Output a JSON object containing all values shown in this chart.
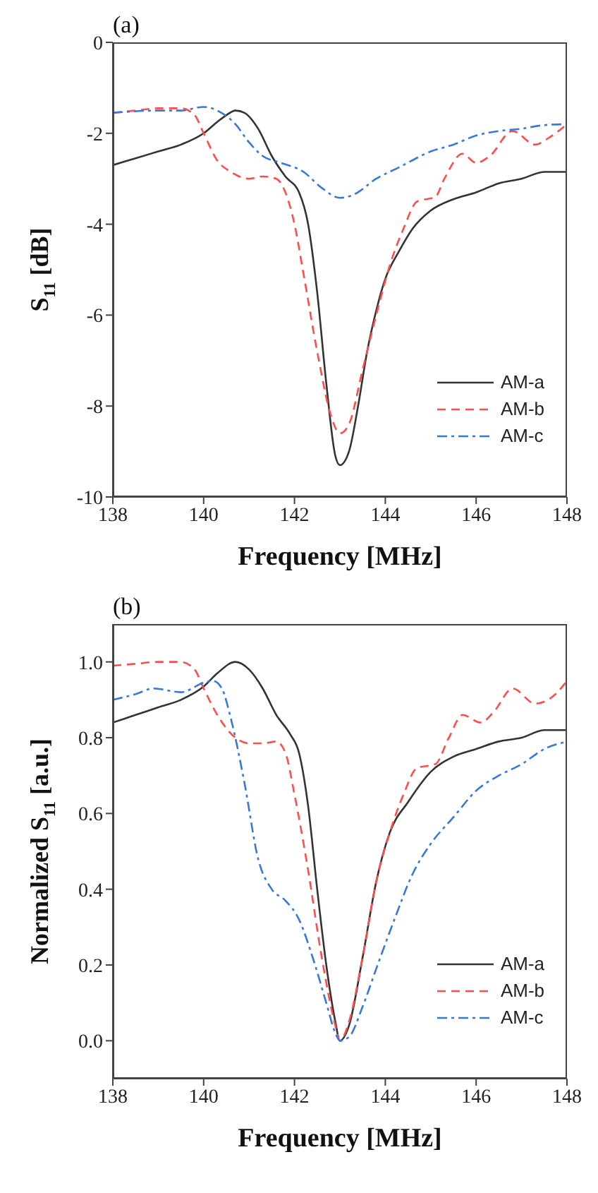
{
  "chart_data": [
    {
      "type": "line",
      "title": "(a)",
      "xlabel": "Frequency [MHz]",
      "ylabel": "S$_{11}$ [dB]",
      "xlim": [
        138,
        148
      ],
      "xticks": [
        138,
        140,
        142,
        144,
        146,
        148
      ],
      "ylim": [
        -10,
        0
      ],
      "yticks": [
        -10,
        -8,
        -6,
        -4,
        -2,
        0
      ],
      "legend": "bottom right",
      "marker": "none",
      "series": [
        {
          "name": "AM-a",
          "color": "#333333",
          "line_style": "solid",
          "x": [
            138,
            138.5,
            139,
            139.5,
            140,
            140.3,
            140.5,
            140.7,
            140.9,
            141.2,
            141.5,
            141.8,
            142.1,
            142.3,
            142.5,
            142.7,
            142.9,
            143,
            143.2,
            143.4,
            143.6,
            143.8,
            144,
            144.3,
            144.6,
            145,
            145.5,
            146,
            146.5,
            147,
            147.5,
            148
          ],
          "values": [
            -2.7,
            -2.55,
            -2.4,
            -2.25,
            -2,
            -1.75,
            -1.6,
            -1.5,
            -1.55,
            -1.9,
            -2.5,
            -2.95,
            -3.3,
            -4,
            -5.5,
            -7.5,
            -9.1,
            -9.3,
            -9,
            -8,
            -6.8,
            -5.9,
            -5.2,
            -4.6,
            -4.1,
            -3.7,
            -3.45,
            -3.3,
            -3.1,
            -3,
            -2.85,
            -2.85
          ]
        },
        {
          "name": "AM-b",
          "color": "#ff4d4d",
          "line_style": "dashed",
          "x": [
            138,
            138.5,
            139,
            139.5,
            139.8,
            140,
            140.3,
            140.6,
            141,
            141.3,
            141.6,
            141.8,
            142,
            142.2,
            142.5,
            142.8,
            143,
            143.2,
            143.5,
            143.8,
            144.1,
            144.4,
            144.7,
            145.1,
            145.3,
            145.7,
            146,
            146.3,
            146.8,
            147.3,
            147.6,
            148
          ],
          "values": [
            -1.55,
            -1.5,
            -1.45,
            -1.45,
            -1.6,
            -2,
            -2.6,
            -2.85,
            -3,
            -2.95,
            -3,
            -3.3,
            -4,
            -5.1,
            -6.8,
            -8.2,
            -8.6,
            -8.4,
            -7.2,
            -6,
            -4.9,
            -4.1,
            -3.5,
            -3.4,
            -3,
            -2.45,
            -2.65,
            -2.5,
            -1.95,
            -2.25,
            -2.1,
            -1.8
          ]
        },
        {
          "name": "AM-c",
          "color": "#3a78d8",
          "line_style": "dotted",
          "x": [
            138,
            139,
            139.5,
            140,
            140.3,
            140.7,
            141,
            141.3,
            141.7,
            142.2,
            142.6,
            143,
            143.3,
            143.8,
            144.3,
            145,
            145.5,
            146,
            146.5,
            147,
            147.5,
            148
          ],
          "values": [
            -1.55,
            -1.5,
            -1.5,
            -1.42,
            -1.5,
            -1.8,
            -2.2,
            -2.5,
            -2.65,
            -2.85,
            -3.2,
            -3.42,
            -3.35,
            -3,
            -2.75,
            -2.4,
            -2.25,
            -2.05,
            -1.95,
            -1.9,
            -1.82,
            -1.8
          ]
        }
      ]
    },
    {
      "type": "line",
      "title": "(b)",
      "xlabel": "Frequency [MHz]",
      "ylabel": "Normalized S$_{11}$ [a.u.]",
      "xlim": [
        138,
        148
      ],
      "xticks": [
        138,
        140,
        142,
        144,
        146,
        148
      ],
      "ylim": [
        -0.1,
        1.1
      ],
      "yticks": [
        {
          "value": 0,
          "label": "0.0"
        },
        {
          "value": 0.2,
          "label": "0.2"
        },
        {
          "value": 0.4,
          "label": "0.4"
        },
        {
          "value": 0.6,
          "label": "0.6"
        },
        {
          "value": 0.8,
          "label": "0.8"
        },
        {
          "value": 1,
          "label": "1.0"
        }
      ],
      "legend": "bottom right",
      "marker": "none",
      "series": [
        {
          "name": "AM-a",
          "color": "#333333",
          "line_style": "solid",
          "x": [
            138,
            138.5,
            139,
            139.5,
            140,
            140.3,
            140.7,
            141,
            141.3,
            141.6,
            141.9,
            142.1,
            142.3,
            142.5,
            142.7,
            142.9,
            143,
            143.2,
            143.5,
            143.8,
            144.1,
            144.5,
            145,
            145.5,
            146,
            146.5,
            147,
            147.5,
            148
          ],
          "values": [
            0.84,
            0.86,
            0.88,
            0.9,
            0.935,
            0.97,
            1,
            0.98,
            0.93,
            0.86,
            0.81,
            0.76,
            0.62,
            0.4,
            0.2,
            0.05,
            0,
            0.04,
            0.22,
            0.42,
            0.55,
            0.63,
            0.71,
            0.75,
            0.77,
            0.79,
            0.8,
            0.82,
            0.82
          ]
        },
        {
          "name": "AM-b",
          "color": "#ff4d4d",
          "line_style": "dashed",
          "x": [
            138,
            138.5,
            139,
            139.5,
            139.8,
            140,
            140.3,
            140.7,
            141,
            141.3,
            141.6,
            141.8,
            142,
            142.3,
            142.6,
            142.9,
            143,
            143.2,
            143.5,
            143.8,
            144.1,
            144.4,
            144.7,
            145.1,
            145.4,
            145.7,
            146.1,
            146.4,
            146.8,
            147.3,
            147.7,
            148
          ],
          "values": [
            0.99,
            0.995,
            1,
            1,
            0.98,
            0.93,
            0.86,
            0.8,
            0.785,
            0.785,
            0.79,
            0.76,
            0.65,
            0.45,
            0.22,
            0.04,
            0,
            0.05,
            0.22,
            0.42,
            0.55,
            0.65,
            0.72,
            0.73,
            0.8,
            0.86,
            0.84,
            0.87,
            0.93,
            0.89,
            0.91,
            0.95
          ]
        },
        {
          "name": "AM-c",
          "color": "#3a78d8",
          "line_style": "dotted",
          "x": [
            138,
            138.5,
            138.9,
            139.5,
            140,
            140.2,
            140.4,
            140.6,
            140.9,
            141.2,
            141.5,
            141.8,
            142.1,
            142.4,
            142.7,
            142.9,
            143,
            143.2,
            143.5,
            143.8,
            144.2,
            144.6,
            145,
            145.5,
            146,
            146.5,
            147,
            147.5,
            148
          ],
          "values": [
            0.9,
            0.915,
            0.93,
            0.92,
            0.945,
            0.95,
            0.93,
            0.85,
            0.68,
            0.48,
            0.4,
            0.37,
            0.32,
            0.22,
            0.1,
            0.02,
            0,
            0.01,
            0.09,
            0.19,
            0.32,
            0.44,
            0.52,
            0.59,
            0.66,
            0.7,
            0.73,
            0.77,
            0.79
          ]
        }
      ]
    }
  ]
}
